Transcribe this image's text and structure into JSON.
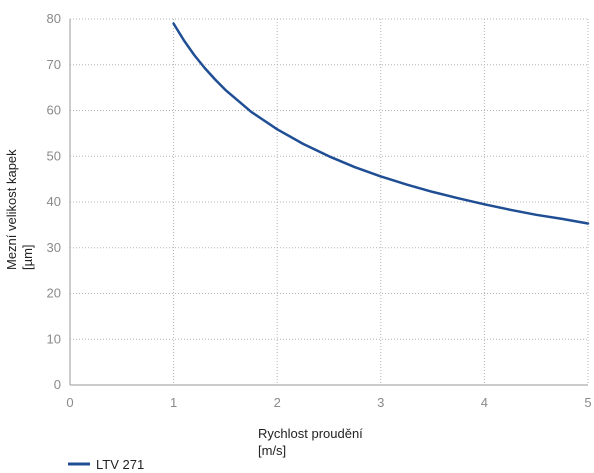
{
  "chart_data": {
    "type": "line",
    "xlabel_lines": [
      "Rychlost proudění",
      "[m/s]"
    ],
    "ylabel_lines": [
      "Mezní velikost kapek",
      "[µm]"
    ],
    "xlim": [
      0,
      5
    ],
    "ylim": [
      0,
      80
    ],
    "xticks": [
      0,
      1,
      2,
      3,
      4,
      5
    ],
    "yticks": [
      0,
      10,
      20,
      30,
      40,
      50,
      60,
      70,
      80
    ],
    "grid": "dotted",
    "legend_position": "bottom-left",
    "series": [
      {
        "name": "LTV 271",
        "color": "#1f4e94",
        "x": [
          1.0,
          1.1,
          1.2,
          1.3,
          1.4,
          1.5,
          1.75,
          2.0,
          2.25,
          2.5,
          2.75,
          3.0,
          3.25,
          3.5,
          3.75,
          4.0,
          4.25,
          4.5,
          4.75,
          5.0
        ],
        "y": [
          79,
          75.3,
          72.1,
          69.3,
          66.8,
          64.5,
          59.7,
          55.9,
          52.7,
          50.0,
          47.6,
          45.6,
          43.8,
          42.2,
          40.8,
          39.5,
          38.3,
          37.2,
          36.3,
          35.3
        ]
      }
    ]
  }
}
